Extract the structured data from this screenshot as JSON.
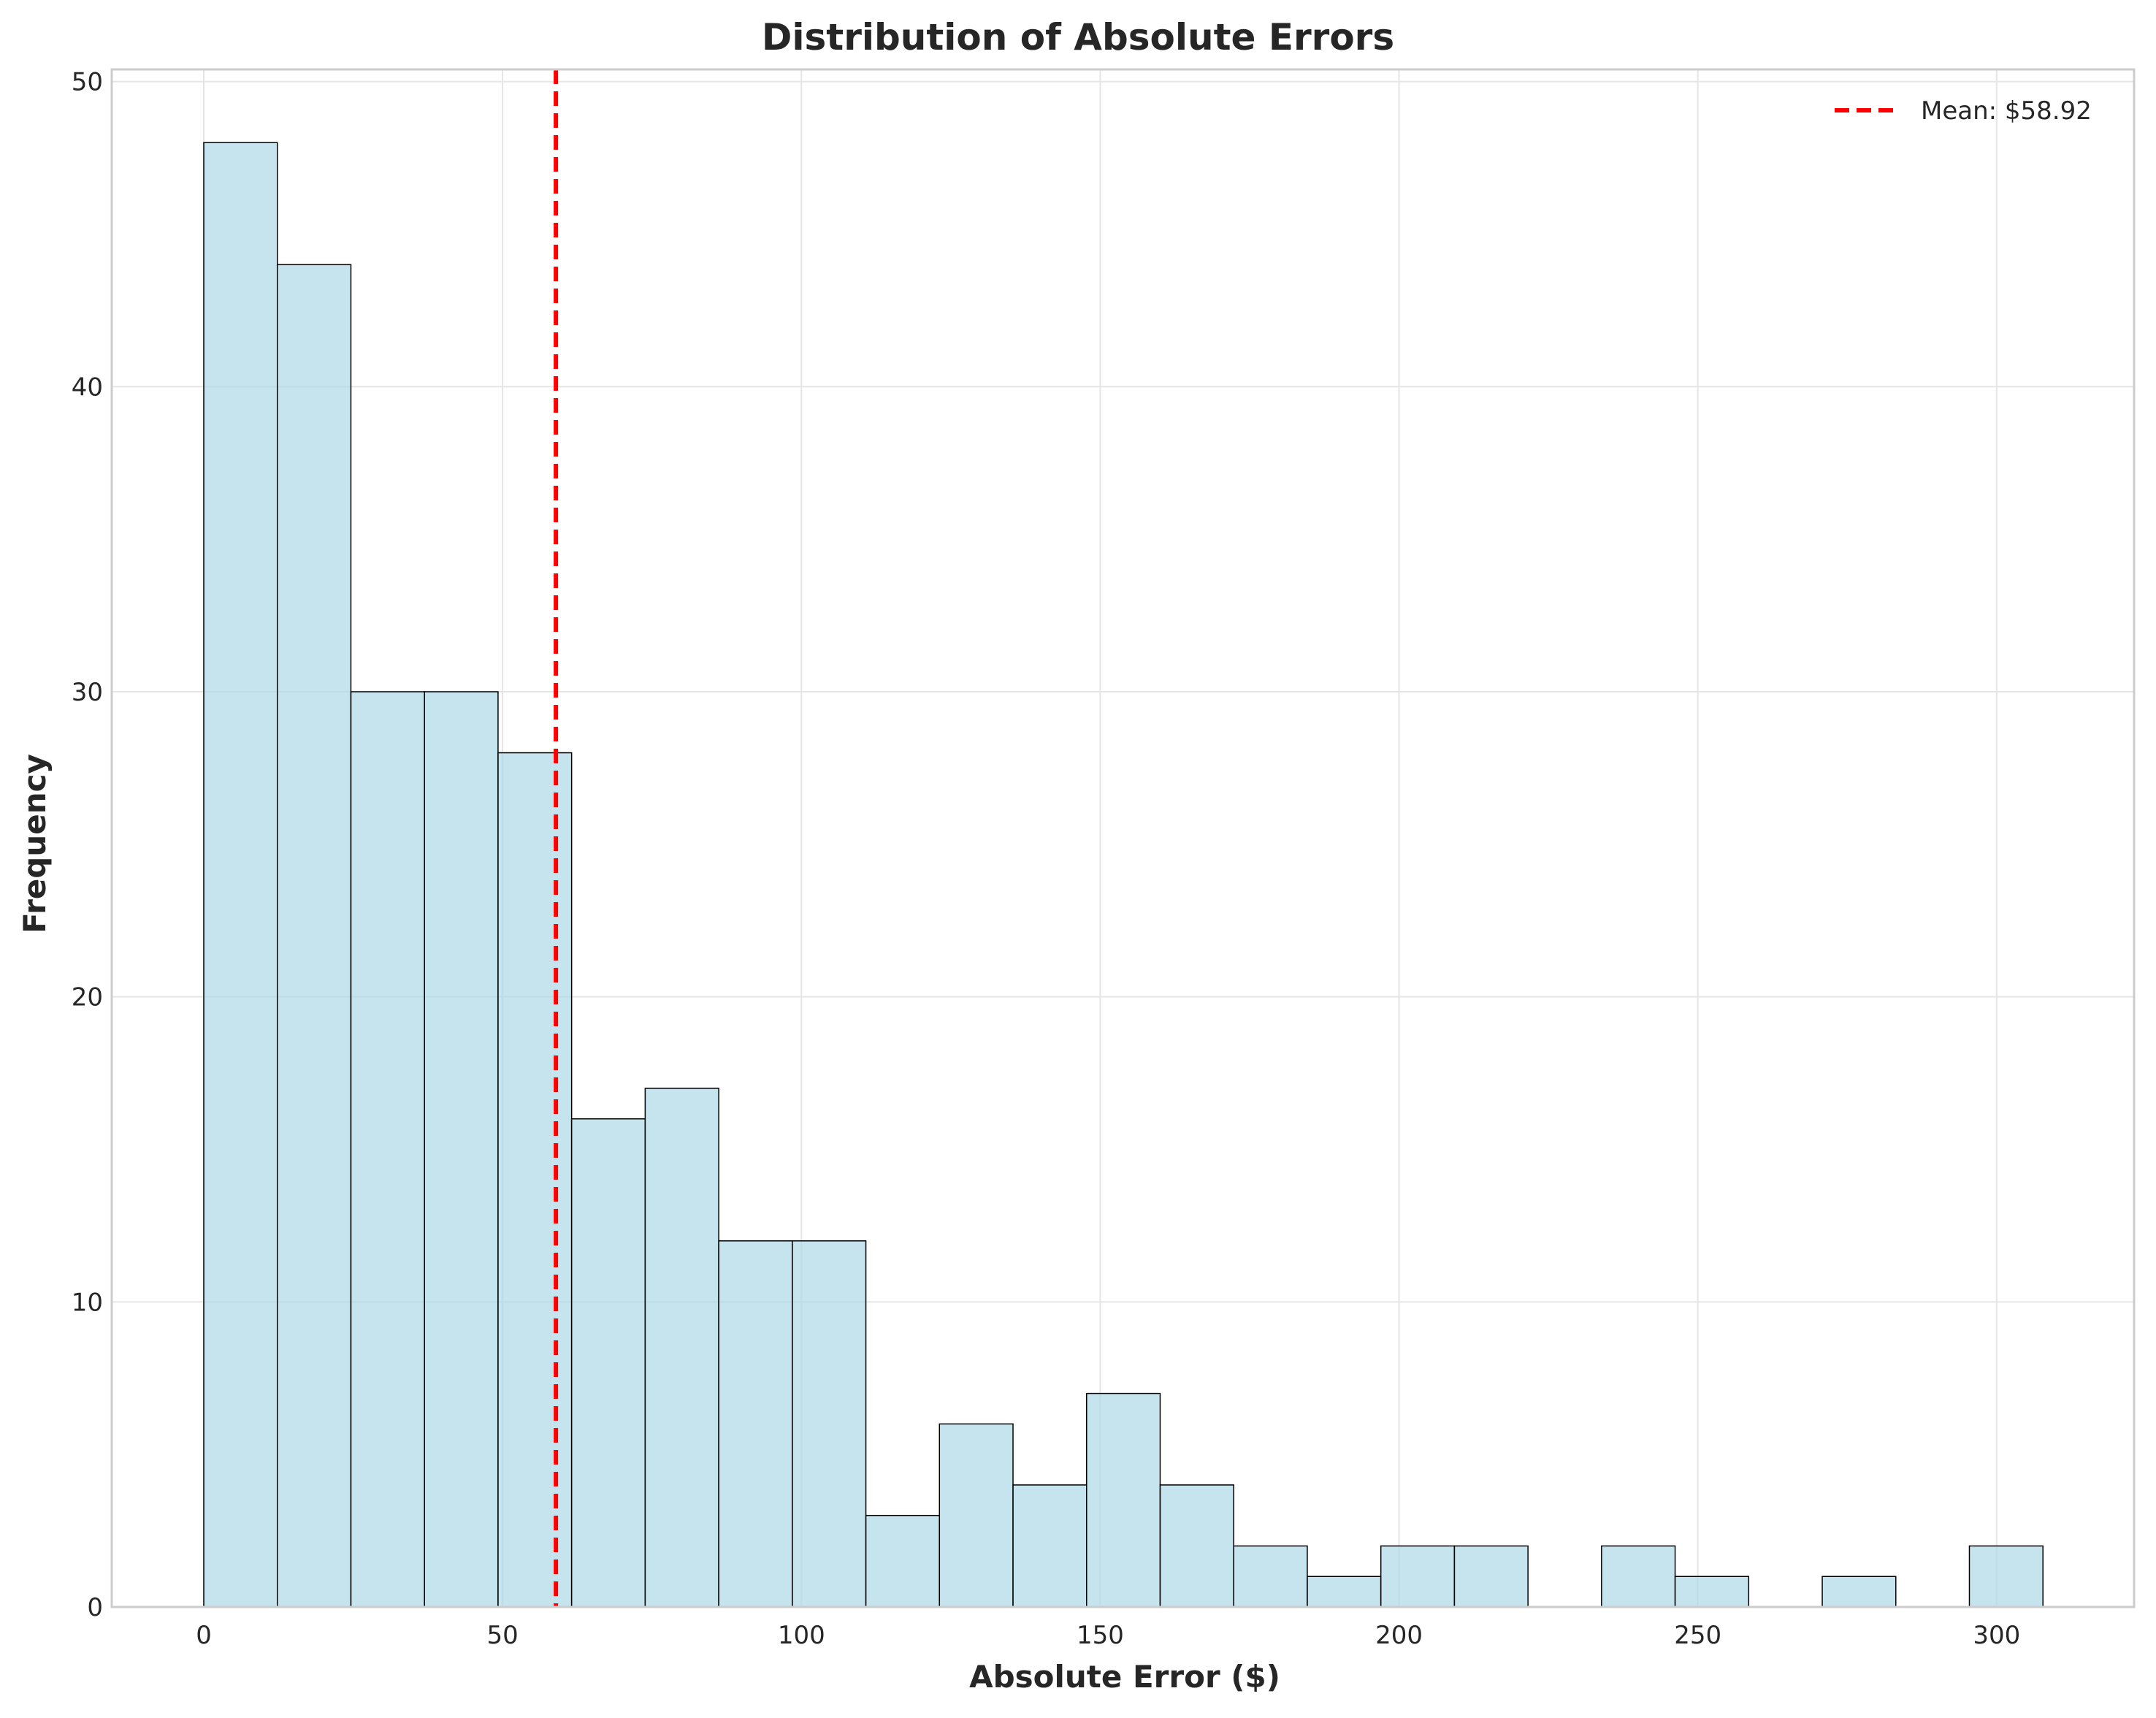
{
  "chart_data": {
    "type": "bar",
    "title": "Distribution of Absolute Errors",
    "xlabel": "Absolute Error ($)",
    "ylabel": "Frequency",
    "xlim": [
      -15.4,
      323.0
    ],
    "ylim": [
      0,
      50.4
    ],
    "xticks": [
      0,
      50,
      100,
      150,
      200,
      250,
      300
    ],
    "yticks": [
      0,
      10,
      20,
      30,
      40,
      50
    ],
    "grid": true,
    "legend_position": "top-right",
    "bin_edges": [
      0,
      12.31,
      24.62,
      36.93,
      49.24,
      61.55,
      73.86,
      86.17,
      98.48,
      110.79,
      123.1,
      135.41,
      147.72,
      160.03,
      172.34,
      184.65,
      196.96,
      209.27,
      221.58,
      233.89,
      246.2,
      258.51,
      270.82,
      283.13,
      295.44,
      307.75
    ],
    "counts": [
      48,
      44,
      30,
      30,
      28,
      16,
      17,
      12,
      12,
      3,
      6,
      4,
      7,
      4,
      2,
      1,
      2,
      2,
      0,
      2,
      1,
      0,
      1,
      0,
      2
    ],
    "mean": {
      "value": 58.92,
      "label": "Mean: $58.92"
    },
    "colors": {
      "bar_fill": "#add8e6",
      "bar_edge": "#000000",
      "mean_line": "#ff0000",
      "grid": "#e5e5e5",
      "frame": "#cccccc"
    }
  }
}
